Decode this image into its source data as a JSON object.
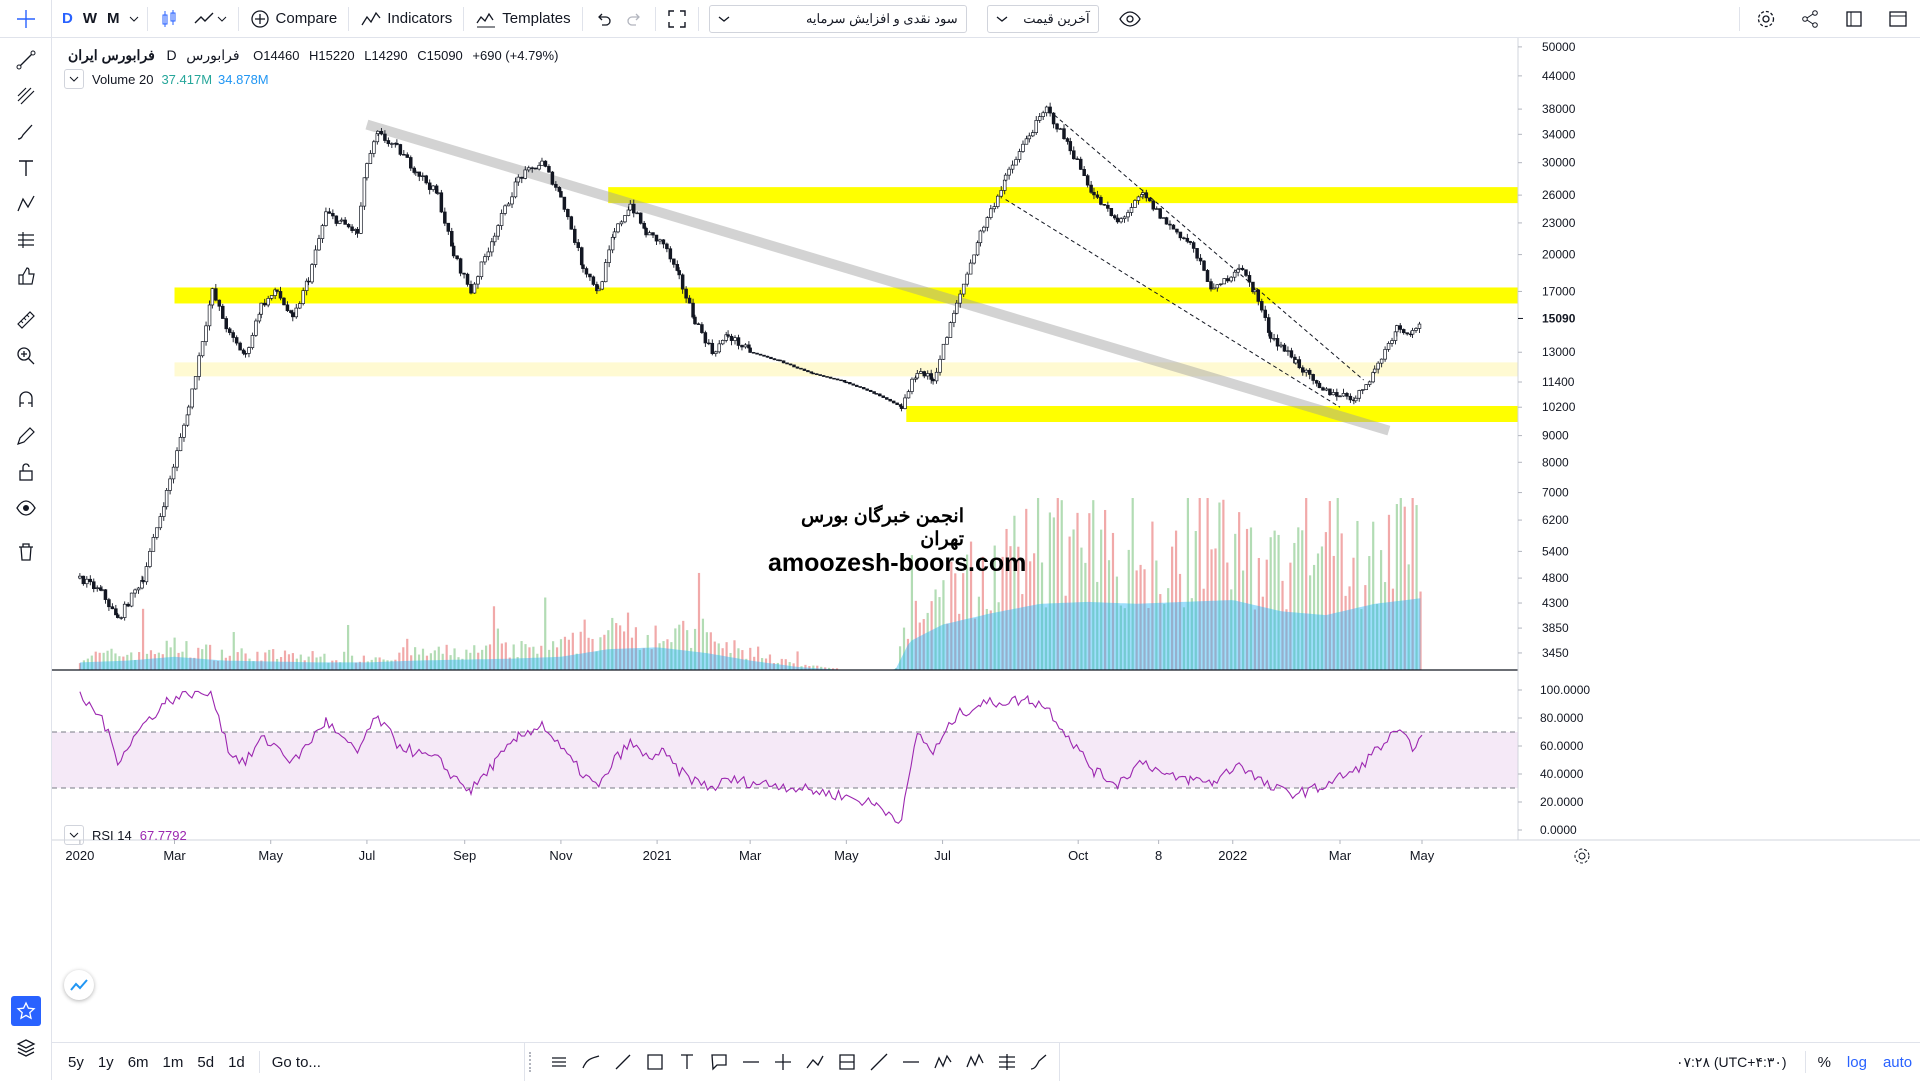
{
  "toolbar": {
    "intervals": [
      "D",
      "W",
      "M"
    ],
    "compare_label": "Compare",
    "indicators_label": "Indicators",
    "templates_label": "Templates",
    "dropdown1_value": "سود نقدی و افزایش سرمایه",
    "dropdown2_value": "آخرین قیمت"
  },
  "legend": {
    "symbol": "فرابورس ایران",
    "interval": "D",
    "exchange": "فرابورس",
    "open": "O14460",
    "high": "H15220",
    "low": "L14290",
    "close": "C15090",
    "change": "+690 (+4.79%)",
    "volume_label": "Volume 20",
    "volume_value": "37.417M",
    "volume_ma": "34.878M",
    "rsi_label": "RSI 14",
    "rsi_value": "67.7792"
  },
  "watermark": {
    "line1": "انجمن  خبرگان  بورس  تهران",
    "line2": "amoozesh-boors.com"
  },
  "price_axis": [
    "50000",
    "44000",
    "38000",
    "34000",
    "30000",
    "26000",
    "23000",
    "20000",
    "17000",
    "15090",
    "13000",
    "11400",
    "10200",
    "9000",
    "8000",
    "7000",
    "6200",
    "5400",
    "4800",
    "4300",
    "3850",
    "3450"
  ],
  "rsi_axis": [
    "100.0000",
    "80.0000",
    "60.0000",
    "40.0000",
    "20.0000",
    "0.0000"
  ],
  "time_axis": [
    "2020",
    "Mar",
    "May",
    "Jul",
    "Sep",
    "Nov",
    "2021",
    "Mar",
    "May",
    "Jul",
    "Oct",
    "8",
    "2022",
    "Mar",
    "May"
  ],
  "bottom": {
    "ranges": [
      "5y",
      "1y",
      "6m",
      "1m",
      "5d",
      "1d"
    ],
    "goto": "Go to...",
    "clock": "۰۷:۲۸ (UTC+۴:۳۰)",
    "pct": "%",
    "log": "log",
    "auto": "auto"
  },
  "colors": {
    "up": "#26a69a",
    "down": "#ef5350",
    "zone": "#ffff00",
    "zone_light": "#fffacd",
    "rsi_line": "#9c27b0",
    "accent": "#2962ff"
  },
  "chart_data": [
    {
      "type": "candlestick",
      "scale": "log",
      "ylim": [
        3200,
        52000
      ],
      "last_price": 15090,
      "price_series": [
        [
          "2020-01-01",
          4800
        ],
        [
          "2020-01-15",
          4500
        ],
        [
          "2020-01-25",
          4000
        ],
        [
          "2020-02-10",
          4800
        ],
        [
          "2020-02-25",
          7000
        ],
        [
          "2020-03-10",
          10200
        ],
        [
          "2020-03-25",
          17000
        ],
        [
          "2020-04-05",
          14000
        ],
        [
          "2020-04-15",
          12800
        ],
        [
          "2020-04-25",
          16000
        ],
        [
          "2020-05-05",
          17000
        ],
        [
          "2020-05-15",
          15000
        ],
        [
          "2020-05-25",
          18000
        ],
        [
          "2020-06-05",
          24000
        ],
        [
          "2020-06-15",
          23000
        ],
        [
          "2020-06-25",
          22000
        ],
        [
          "2020-07-01",
          30000
        ],
        [
          "2020-07-08",
          34000
        ],
        [
          "2020-07-20",
          32000
        ],
        [
          "2020-08-01",
          29000
        ],
        [
          "2020-08-15",
          26000
        ],
        [
          "2020-08-25",
          20000
        ],
        [
          "2020-09-05",
          17000
        ],
        [
          "2020-09-20",
          22000
        ],
        [
          "2020-10-05",
          28000
        ],
        [
          "2020-10-20",
          30000
        ],
        [
          "2020-11-01",
          26000
        ],
        [
          "2020-11-15",
          19000
        ],
        [
          "2020-11-25",
          17000
        ],
        [
          "2020-12-05",
          22000
        ],
        [
          "2020-12-15",
          25000
        ],
        [
          "2020-12-25",
          22000
        ],
        [
          "2021-01-05",
          21000
        ],
        [
          "2021-01-15",
          18000
        ],
        [
          "2021-01-25",
          15000
        ],
        [
          "2021-02-05",
          13000
        ],
        [
          "2021-02-15",
          14000
        ],
        [
          "2021-03-01",
          13000
        ],
        [
          "2021-03-20",
          12500
        ],
        [
          "2021-04-10",
          11800
        ],
        [
          "2021-05-01",
          11400
        ],
        [
          "2021-05-20",
          10800
        ],
        [
          "2021-06-05",
          10200
        ],
        [
          "2021-06-15",
          12000
        ],
        [
          "2021-06-25",
          11500
        ],
        [
          "2021-07-10",
          16000
        ],
        [
          "2021-07-25",
          22000
        ],
        [
          "2021-08-10",
          28000
        ],
        [
          "2021-08-25",
          34000
        ],
        [
          "2021-09-05",
          38000
        ],
        [
          "2021-09-20",
          32000
        ],
        [
          "2021-10-05",
          26000
        ],
        [
          "2021-10-20",
          23000
        ],
        [
          "2021-11-05",
          26000
        ],
        [
          "2021-11-20",
          23000
        ],
        [
          "2021-12-05",
          21000
        ],
        [
          "2021-12-20",
          17000
        ],
        [
          "2022-01-05",
          19000
        ],
        [
          "2022-01-15",
          17000
        ],
        [
          "2022-01-25",
          14000
        ],
        [
          "2022-02-10",
          12500
        ],
        [
          "2022-02-25",
          11000
        ],
        [
          "2022-03-10",
          10800
        ],
        [
          "2022-03-20",
          10600
        ],
        [
          "2022-04-01",
          12000
        ],
        [
          "2022-04-15",
          14500
        ],
        [
          "2022-04-25",
          14200
        ],
        [
          "2022-05-01",
          15090
        ]
      ],
      "horizontal_zones": [
        {
          "from": "2020-12-01",
          "price": 26000
        },
        {
          "from": "2020-03-01",
          "price": 16700
        },
        {
          "from": "2020-03-01",
          "price": 12000,
          "style": "light"
        },
        {
          "from": "2021-06-08",
          "price": 9900
        }
      ],
      "trend_line": [
        [
          "2020-07-01",
          35500
        ],
        [
          "2022-04-10",
          9200
        ]
      ],
      "channel": [
        [
          [
            "2021-09-10",
            37000
          ],
          [
            "2022-03-25",
            11500
          ]
        ],
        [
          [
            "2021-08-10",
            25500
          ],
          [
            "2022-03-10",
            10200
          ]
        ]
      ]
    },
    {
      "type": "bar",
      "name": "Volume 20",
      "ylim": [
        0,
        100
      ],
      "levels": [
        [
          "2020-01-01",
          8
        ],
        [
          "2020-02-01",
          10
        ],
        [
          "2020-03-01",
          14
        ],
        [
          "2020-04-01",
          10
        ],
        [
          "2020-05-01",
          9
        ],
        [
          "2020-06-01",
          8
        ],
        [
          "2020-07-01",
          8
        ],
        [
          "2020-08-01",
          10
        ],
        [
          "2020-09-01",
          11
        ],
        [
          "2020-10-01",
          12
        ],
        [
          "2020-11-01",
          14
        ],
        [
          "2020-12-01",
          22
        ],
        [
          "2021-01-01",
          24
        ],
        [
          "2021-02-01",
          18
        ],
        [
          "2021-03-01",
          10
        ],
        [
          "2021-04-01",
          3
        ],
        [
          "2021-05-01",
          0
        ],
        [
          "2021-06-01",
          0
        ],
        [
          "2021-06-10",
          30
        ],
        [
          "2021-07-01",
          48
        ],
        [
          "2021-08-01",
          60
        ],
        [
          "2021-09-01",
          70
        ],
        [
          "2021-10-01",
          72
        ],
        [
          "2021-11-01",
          70
        ],
        [
          "2021-12-01",
          72
        ],
        [
          "2022-01-01",
          74
        ],
        [
          "2022-02-01",
          62
        ],
        [
          "2022-03-01",
          58
        ],
        [
          "2022-04-01",
          70
        ],
        [
          "2022-05-01",
          76
        ]
      ]
    },
    {
      "type": "line",
      "name": "RSI 14",
      "ylim": [
        0,
        100
      ],
      "bands": [
        30,
        70
      ],
      "values": [
        [
          "2020-01-01",
          95
        ],
        [
          "2020-01-15",
          80
        ],
        [
          "2020-01-25",
          50
        ],
        [
          "2020-02-10",
          75
        ],
        [
          "2020-02-25",
          92
        ],
        [
          "2020-03-10",
          98
        ],
        [
          "2020-03-25",
          97
        ],
        [
          "2020-04-05",
          55
        ],
        [
          "2020-04-15",
          48
        ],
        [
          "2020-04-25",
          65
        ],
        [
          "2020-05-05",
          60
        ],
        [
          "2020-05-15",
          48
        ],
        [
          "2020-05-25",
          62
        ],
        [
          "2020-06-05",
          78
        ],
        [
          "2020-06-15",
          65
        ],
        [
          "2020-06-25",
          55
        ],
        [
          "2020-07-01",
          70
        ],
        [
          "2020-07-08",
          80
        ],
        [
          "2020-07-20",
          62
        ],
        [
          "2020-08-01",
          55
        ],
        [
          "2020-08-15",
          50
        ],
        [
          "2020-08-25",
          38
        ],
        [
          "2020-09-05",
          28
        ],
        [
          "2020-09-20",
          48
        ],
        [
          "2020-10-05",
          66
        ],
        [
          "2020-10-20",
          76
        ],
        [
          "2020-11-01",
          58
        ],
        [
          "2020-11-15",
          40
        ],
        [
          "2020-11-25",
          30
        ],
        [
          "2020-12-05",
          50
        ],
        [
          "2020-12-15",
          62
        ],
        [
          "2020-12-25",
          52
        ],
        [
          "2021-01-05",
          55
        ],
        [
          "2021-01-15",
          42
        ],
        [
          "2021-01-25",
          35
        ],
        [
          "2021-02-05",
          30
        ],
        [
          "2021-02-15",
          36
        ],
        [
          "2021-03-01",
          34
        ],
        [
          "2021-03-20",
          32
        ],
        [
          "2021-04-10",
          28
        ],
        [
          "2021-05-01",
          24
        ],
        [
          "2021-05-20",
          18
        ],
        [
          "2021-06-05",
          7
        ],
        [
          "2021-06-15",
          70
        ],
        [
          "2021-06-25",
          55
        ],
        [
          "2021-07-10",
          82
        ],
        [
          "2021-07-25",
          90
        ],
        [
          "2021-08-10",
          92
        ],
        [
          "2021-08-25",
          93
        ],
        [
          "2021-09-05",
          88
        ],
        [
          "2021-09-20",
          65
        ],
        [
          "2021-10-05",
          42
        ],
        [
          "2021-10-20",
          33
        ],
        [
          "2021-11-05",
          50
        ],
        [
          "2021-11-20",
          38
        ],
        [
          "2021-12-05",
          36
        ],
        [
          "2021-12-20",
          34
        ],
        [
          "2022-01-05",
          48
        ],
        [
          "2022-01-15",
          38
        ],
        [
          "2022-01-25",
          30
        ],
        [
          "2022-02-10",
          26
        ],
        [
          "2022-02-25",
          30
        ],
        [
          "2022-03-10",
          38
        ],
        [
          "2022-03-20",
          42
        ],
        [
          "2022-04-01",
          56
        ],
        [
          "2022-04-15",
          70
        ],
        [
          "2022-04-25",
          60
        ],
        [
          "2022-05-01",
          67.78
        ]
      ]
    }
  ]
}
